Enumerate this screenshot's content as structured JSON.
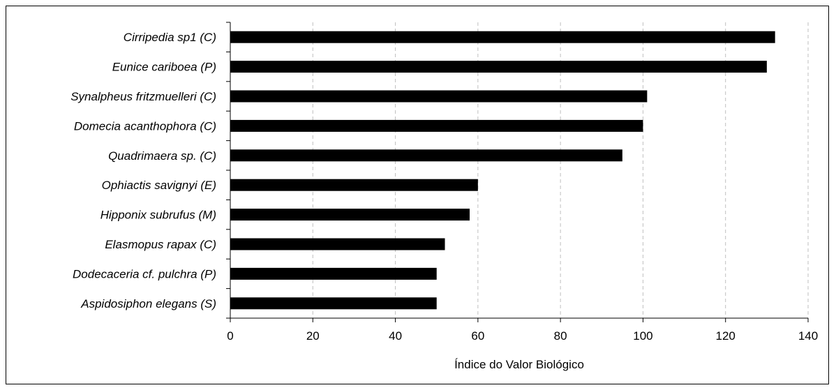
{
  "chart_data": {
    "type": "bar",
    "orientation": "horizontal",
    "categories": [
      "Cirripedia sp1 (C)",
      "Eunice cariboea (P)",
      "Synalpheus fritzmuelleri (C)",
      "Domecia acanthophora (C)",
      "Quadrimaera sp. (C)",
      "Ophiactis savignyi (E)",
      "Hipponix subrufus (M)",
      "Elasmopus rapax (C)",
      "Dodecaceria cf. pulchra (P)",
      "Aspidosiphon elegans (S)"
    ],
    "values": [
      132,
      130,
      101,
      100,
      95,
      60,
      58,
      52,
      50,
      50
    ],
    "xlabel": "Índice do Valor Biológico",
    "ylabel": "",
    "title": "",
    "xlim": [
      0,
      140
    ],
    "xticks": [
      "0",
      "20",
      "40",
      "60",
      "80",
      "100",
      "120",
      "140"
    ],
    "grid": "vertical dashed",
    "bar_color": "#000000",
    "grid_color": "#bfbfbf"
  }
}
